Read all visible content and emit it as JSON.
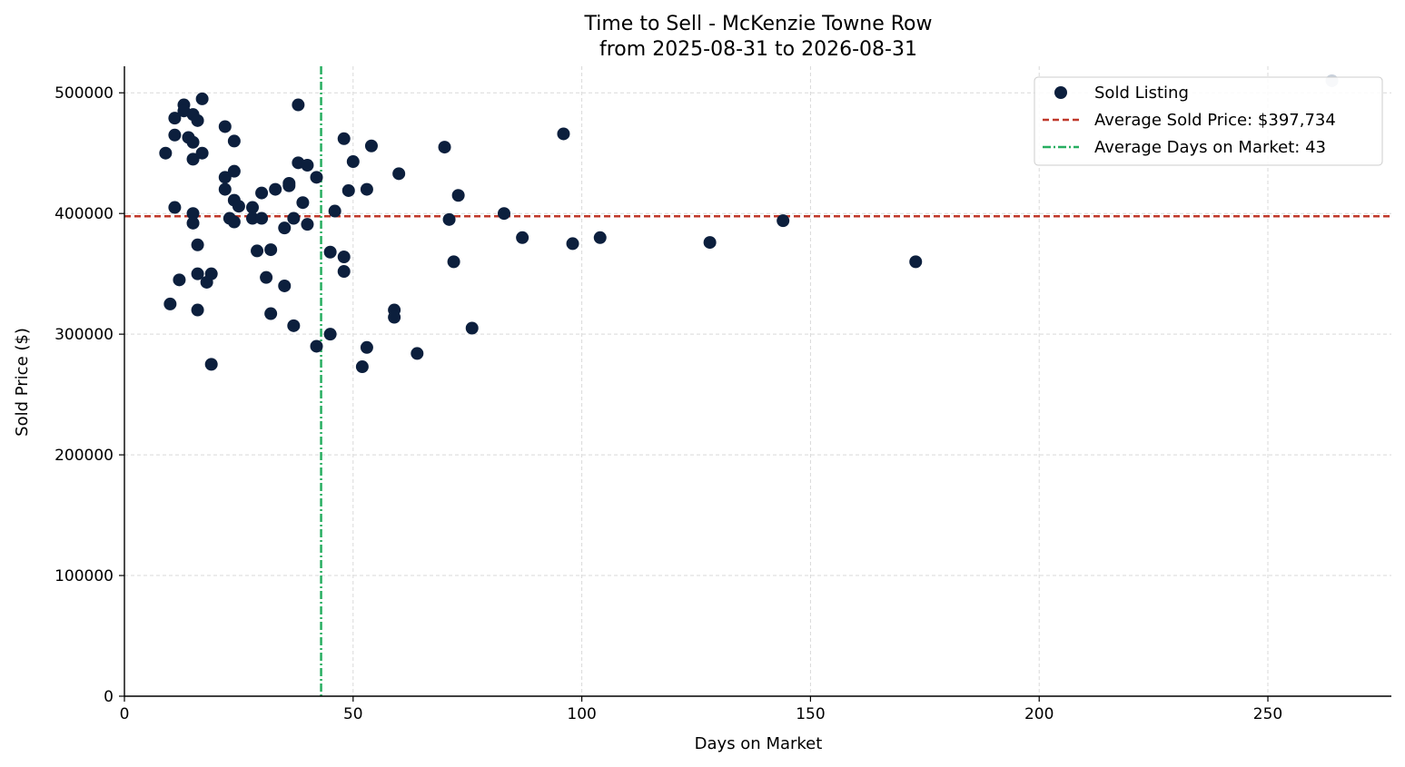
{
  "chart_data": {
    "type": "scatter",
    "title": "Time to Sell - McKenzie Towne Row",
    "subtitle": "from 2025-08-31 to 2026-08-31",
    "xlabel": "Days on Market",
    "ylabel": "Sold Price ($)",
    "xlim": [
      0,
      277
    ],
    "ylim": [
      0,
      522000
    ],
    "xticks": [
      0,
      50,
      100,
      150,
      200,
      250
    ],
    "yticks": [
      0,
      100000,
      200000,
      300000,
      400000,
      500000
    ],
    "grid": true,
    "legend_position": "top-right",
    "colors": {
      "points": "#0c1f3d",
      "outlier": "#c8d0db",
      "avg_price_line": "#c0392b",
      "avg_days_line": "#27ae60"
    },
    "series": [
      {
        "name": "Sold Listing",
        "points": [
          [
            9,
            450000
          ],
          [
            10,
            325000
          ],
          [
            11,
            479000
          ],
          [
            11,
            465000
          ],
          [
            11,
            405000
          ],
          [
            12,
            345000
          ],
          [
            13,
            490000
          ],
          [
            13,
            485000
          ],
          [
            14,
            463000
          ],
          [
            15,
            482000
          ],
          [
            15,
            459000
          ],
          [
            15,
            445000
          ],
          [
            15,
            400000
          ],
          [
            15,
            392000
          ],
          [
            16,
            477000
          ],
          [
            16,
            374000
          ],
          [
            16,
            350000
          ],
          [
            16,
            320000
          ],
          [
            17,
            495000
          ],
          [
            17,
            450000
          ],
          [
            18,
            343000
          ],
          [
            19,
            350000
          ],
          [
            19,
            275000
          ],
          [
            22,
            472000
          ],
          [
            22,
            430000
          ],
          [
            22,
            420000
          ],
          [
            23,
            396000
          ],
          [
            24,
            460000
          ],
          [
            24,
            435000
          ],
          [
            24,
            411000
          ],
          [
            24,
            393000
          ],
          [
            25,
            406000
          ],
          [
            28,
            405000
          ],
          [
            28,
            396000
          ],
          [
            29,
            369000
          ],
          [
            30,
            417000
          ],
          [
            30,
            396000
          ],
          [
            31,
            347000
          ],
          [
            32,
            370000
          ],
          [
            32,
            317000
          ],
          [
            33,
            420000
          ],
          [
            35,
            388000
          ],
          [
            35,
            340000
          ],
          [
            36,
            425000
          ],
          [
            36,
            423000
          ],
          [
            37,
            396000
          ],
          [
            37,
            307000
          ],
          [
            38,
            490000
          ],
          [
            38,
            442000
          ],
          [
            39,
            409000
          ],
          [
            40,
            440000
          ],
          [
            40,
            391000
          ],
          [
            42,
            430000
          ],
          [
            42,
            290000
          ],
          [
            45,
            368000
          ],
          [
            45,
            300000
          ],
          [
            46,
            402000
          ],
          [
            48,
            462000
          ],
          [
            48,
            364000
          ],
          [
            48,
            352000
          ],
          [
            49,
            419000
          ],
          [
            50,
            443000
          ],
          [
            52,
            273000
          ],
          [
            53,
            420000
          ],
          [
            53,
            289000
          ],
          [
            54,
            456000
          ],
          [
            59,
            320000
          ],
          [
            59,
            314000
          ],
          [
            60,
            433000
          ],
          [
            64,
            284000
          ],
          [
            70,
            455000
          ],
          [
            71,
            395000
          ],
          [
            72,
            360000
          ],
          [
            73,
            415000
          ],
          [
            76,
            305000
          ],
          [
            83,
            400000
          ],
          [
            87,
            380000
          ],
          [
            96,
            466000
          ],
          [
            98,
            375000
          ],
          [
            104,
            380000
          ],
          [
            128,
            376000
          ],
          [
            144,
            394000
          ],
          [
            173,
            360000
          ]
        ]
      },
      {
        "name": "",
        "points": [
          [
            264,
            510000
          ]
        ]
      }
    ],
    "reference_lines": [
      {
        "axis": "y",
        "value": 397734,
        "label": "Average Sold Price: $397,734",
        "style": "dashed"
      },
      {
        "axis": "x",
        "value": 43,
        "label": "Average Days on Market: 43",
        "style": "dashdot"
      }
    ]
  }
}
